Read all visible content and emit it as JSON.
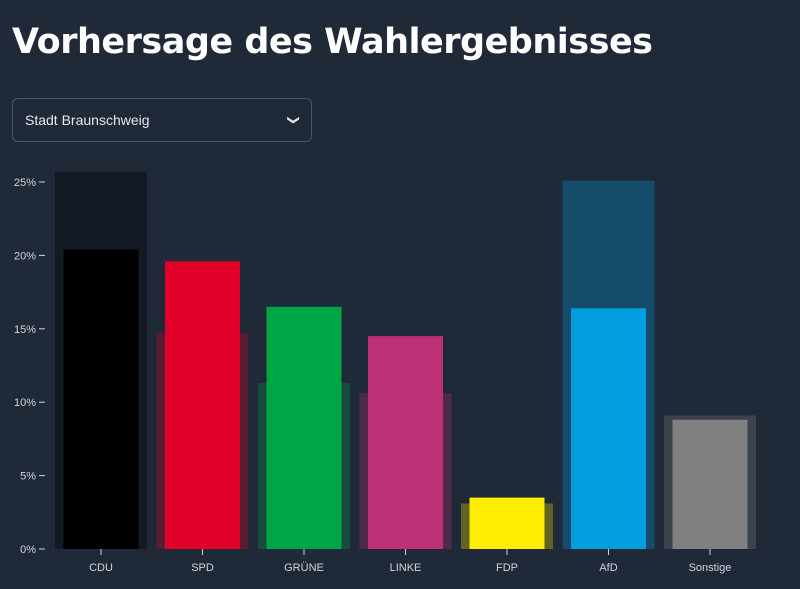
{
  "title": "Vorhersage des Wahlergebnisses",
  "region_select": {
    "value": "Stadt Braunschweig",
    "icon": "chevron-down-icon"
  },
  "chart_data": {
    "type": "bar",
    "categories": [
      "CDU",
      "SPD",
      "GRÜNE",
      "LINKE",
      "FDP",
      "AfD",
      "Sonstige"
    ],
    "series": [
      {
        "values": [
          25.7,
          14.7,
          11.3,
          10.6,
          3.1,
          25.1,
          9.1
        ],
        "style": "wide translucent background bar"
      },
      {
        "values": [
          20.4,
          19.6,
          16.5,
          14.5,
          3.5,
          16.4,
          8.8
        ],
        "style": "narrow solid foreground bar"
      }
    ],
    "colors": [
      "#000000",
      "#e0002a",
      "#00a645",
      "#be3075",
      "#ffed00",
      "#009ee0",
      "#808080"
    ],
    "ylim": [
      0,
      25.8
    ],
    "yticks": [
      0,
      5,
      10,
      15,
      20,
      25
    ],
    "ytick_labels": [
      "0%",
      "5%",
      "10%",
      "15%",
      "20%",
      "25%"
    ],
    "grid": false
  }
}
